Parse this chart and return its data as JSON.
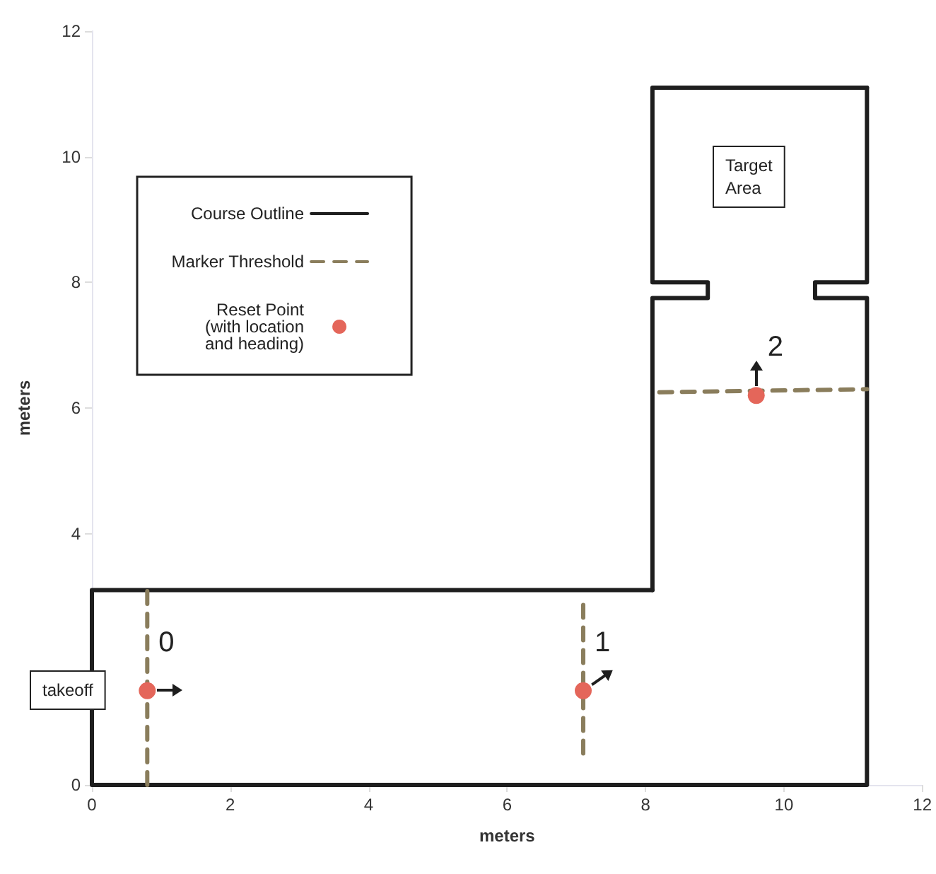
{
  "chart_data": {
    "type": "line",
    "xlabel": "meters",
    "ylabel": "meters",
    "xlim": [
      0,
      12
    ],
    "xticks": [
      0,
      2,
      4,
      6,
      8,
      10,
      12
    ],
    "ylim": [
      0,
      12
    ],
    "yticks": [
      0,
      4,
      6,
      8,
      10,
      12
    ],
    "grid": false,
    "legend": "top left",
    "line_style": "solid",
    "series": [
      {
        "name": "Course Outline",
        "color": "#1e1e1e",
        "marker": "none",
        "x": [
          8.1,
          0,
          0,
          11.2,
          11.2,
          10.45,
          10.45,
          11.2,
          11.2
        ],
        "values": [
          3.1,
          3.1,
          0,
          0,
          7.75,
          7.75,
          8.0,
          8.0,
          11.1
        ]
      },
      {
        "color": "#1e1e1e",
        "marker": "none",
        "x": [
          11.2,
          8.1,
          8.1,
          8.9,
          8.9,
          8.1,
          8.1
        ],
        "values": [
          11.1,
          11.1,
          8.0,
          8.0,
          7.75,
          7.75,
          3.1
        ]
      },
      {
        "name": "Marker Threshold",
        "color": "#8a7d5c",
        "line_style": "dashed",
        "marker": "none",
        "x": [
          0.8,
          0.8
        ],
        "values": [
          0,
          3.1
        ]
      },
      {
        "color": "#8a7d5c",
        "line_style": "dashed",
        "marker": "none",
        "x": [
          7.1,
          7.1
        ],
        "values": [
          0.5,
          3.0
        ]
      },
      {
        "color": "#8a7d5c",
        "line_style": "dashed",
        "marker": "none",
        "x": [
          8.2,
          11.2
        ],
        "values": [
          6.25,
          6.3
        ]
      },
      {
        "name": "Reset Point\n (with location\n and heading)",
        "type": "scatter",
        "color": "#e4665a",
        "marker": "circle",
        "x": [
          0.8,
          7.1,
          9.6
        ],
        "values": [
          1.5,
          1.5,
          6.2
        ]
      }
    ],
    "annotations": [
      {
        "text": "0",
        "x": 0.8,
        "y": 1.5
      },
      {
        "text": "1",
        "x": 7.1,
        "y": 1.5
      },
      {
        "text": "2",
        "x": 9.6,
        "y": 6.2
      },
      "takeoff",
      "Target\nArea"
    ]
  }
}
